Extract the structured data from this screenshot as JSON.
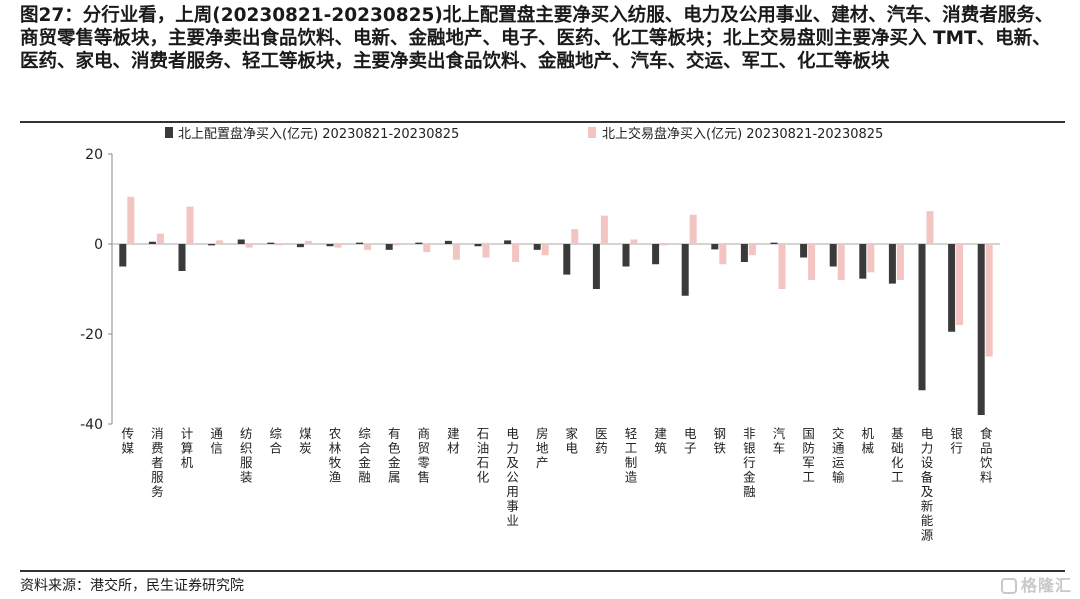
{
  "header": {
    "title": "图27：分行业看，上周(20230821-20230825)北上配置盘主要净买入纺服、电力及公用事业、建材、汽车、消费者服务、商贸零售等板块，主要净卖出食品饮料、电新、金融地产、电子、医药、化工等板块；北上交易盘则主要净买入 TMT、电新、医药、家电、消费者服务、轻工等板块，主要净卖出食品饮料、金融地产、汽车、交运、军工、化工等板块"
  },
  "footer": {
    "source": "资料来源：港交所，民生证券研究院",
    "watermark": "格隆汇"
  },
  "chart_data": {
    "type": "bar",
    "categories": [
      "传媒",
      "消费者服务",
      "计算机",
      "通信",
      "纺织服装",
      "综合",
      "煤炭",
      "农林牧渔",
      "综合金融",
      "有色金属",
      "商贸零售",
      "建材",
      "石油石化",
      "电力及公用事业",
      "房地产",
      "家电",
      "医药",
      "轻工制造",
      "建筑",
      "电子",
      "钢铁",
      "非银行金融",
      "汽车",
      "国防军工",
      "交通运输",
      "机械",
      "基础化工",
      "电力设备及新能源",
      "银行",
      "食品饮料"
    ],
    "series": [
      {
        "name": "北上配置盘净买入(亿元) 20230821-20230825",
        "color": "#3a3a3a",
        "values": [
          -5.0,
          0.5,
          -6.0,
          -0.3,
          1.0,
          0.3,
          -0.7,
          -0.5,
          0.3,
          -1.3,
          0.3,
          0.7,
          -0.5,
          0.8,
          -1.3,
          -6.8,
          -10.0,
          -5.0,
          -4.5,
          -11.5,
          -1.2,
          -4.0,
          0.3,
          -3.0,
          -5.0,
          -7.7,
          -8.8,
          -32.5,
          -19.5,
          -38.0
        ]
      },
      {
        "name": "北上交易盘净买入(亿元) 20230821-20230825",
        "color": "#f2c4c2",
        "values": [
          10.5,
          2.3,
          8.3,
          0.8,
          -0.8,
          -0.3,
          0.7,
          -0.8,
          -1.3,
          -0.3,
          -1.8,
          -3.5,
          -3.0,
          -4.0,
          -2.5,
          3.3,
          6.3,
          1.0,
          -0.3,
          6.5,
          -4.5,
          -2.5,
          -10.0,
          -8.0,
          -8.0,
          -6.3,
          -8.0,
          7.3,
          -18.0,
          -25.0
        ]
      }
    ],
    "yticks": [
      20,
      0,
      -20,
      -40
    ],
    "ylim": [
      -40,
      20
    ],
    "legend_position": "top",
    "grid": false
  }
}
